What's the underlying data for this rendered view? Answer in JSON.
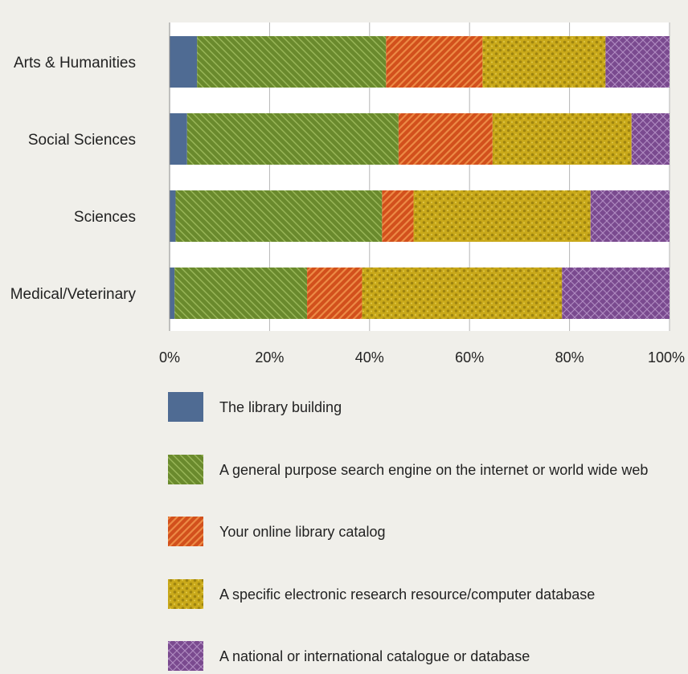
{
  "chart_data": {
    "type": "bar",
    "orientation": "horizontal",
    "stacked": true,
    "normalized_percent": true,
    "title": "",
    "xlabel": "",
    "ylabel": "",
    "xlim": [
      0,
      100
    ],
    "grid": true,
    "legend_position": "bottom",
    "categories": [
      "Arts & Humanities",
      "Social Sciences",
      "Sciences",
      "Medical/Veterinary"
    ],
    "x_ticks": [
      "0%",
      "20%",
      "40%",
      "60%",
      "80%",
      "100%"
    ],
    "series": [
      {
        "name": "The library building",
        "color": "#4f6b93",
        "pattern": "solid",
        "values": [
          5.5,
          3.5,
          1.2,
          1.0
        ]
      },
      {
        "name": "A general purpose search engine on the internet or world wide web",
        "color": "#6a8a2d",
        "pattern": "diagonal-lines",
        "values": [
          37.8,
          42.3,
          41.3,
          26.5
        ]
      },
      {
        "name": "Your online library catalog",
        "color": "#d2501c",
        "pattern": "diagonal-stripes",
        "values": [
          19.3,
          18.8,
          6.3,
          11.0
        ]
      },
      {
        "name": "A specific electronic research resource/computer database",
        "color": "#c9a91a",
        "pattern": "dots",
        "values": [
          24.6,
          27.8,
          35.4,
          40.0
        ]
      },
      {
        "name": "A national or international catalogue or database",
        "color": "#7a4a8f",
        "pattern": "crosshatch",
        "values": [
          12.8,
          7.6,
          15.8,
          21.5
        ]
      }
    ]
  }
}
